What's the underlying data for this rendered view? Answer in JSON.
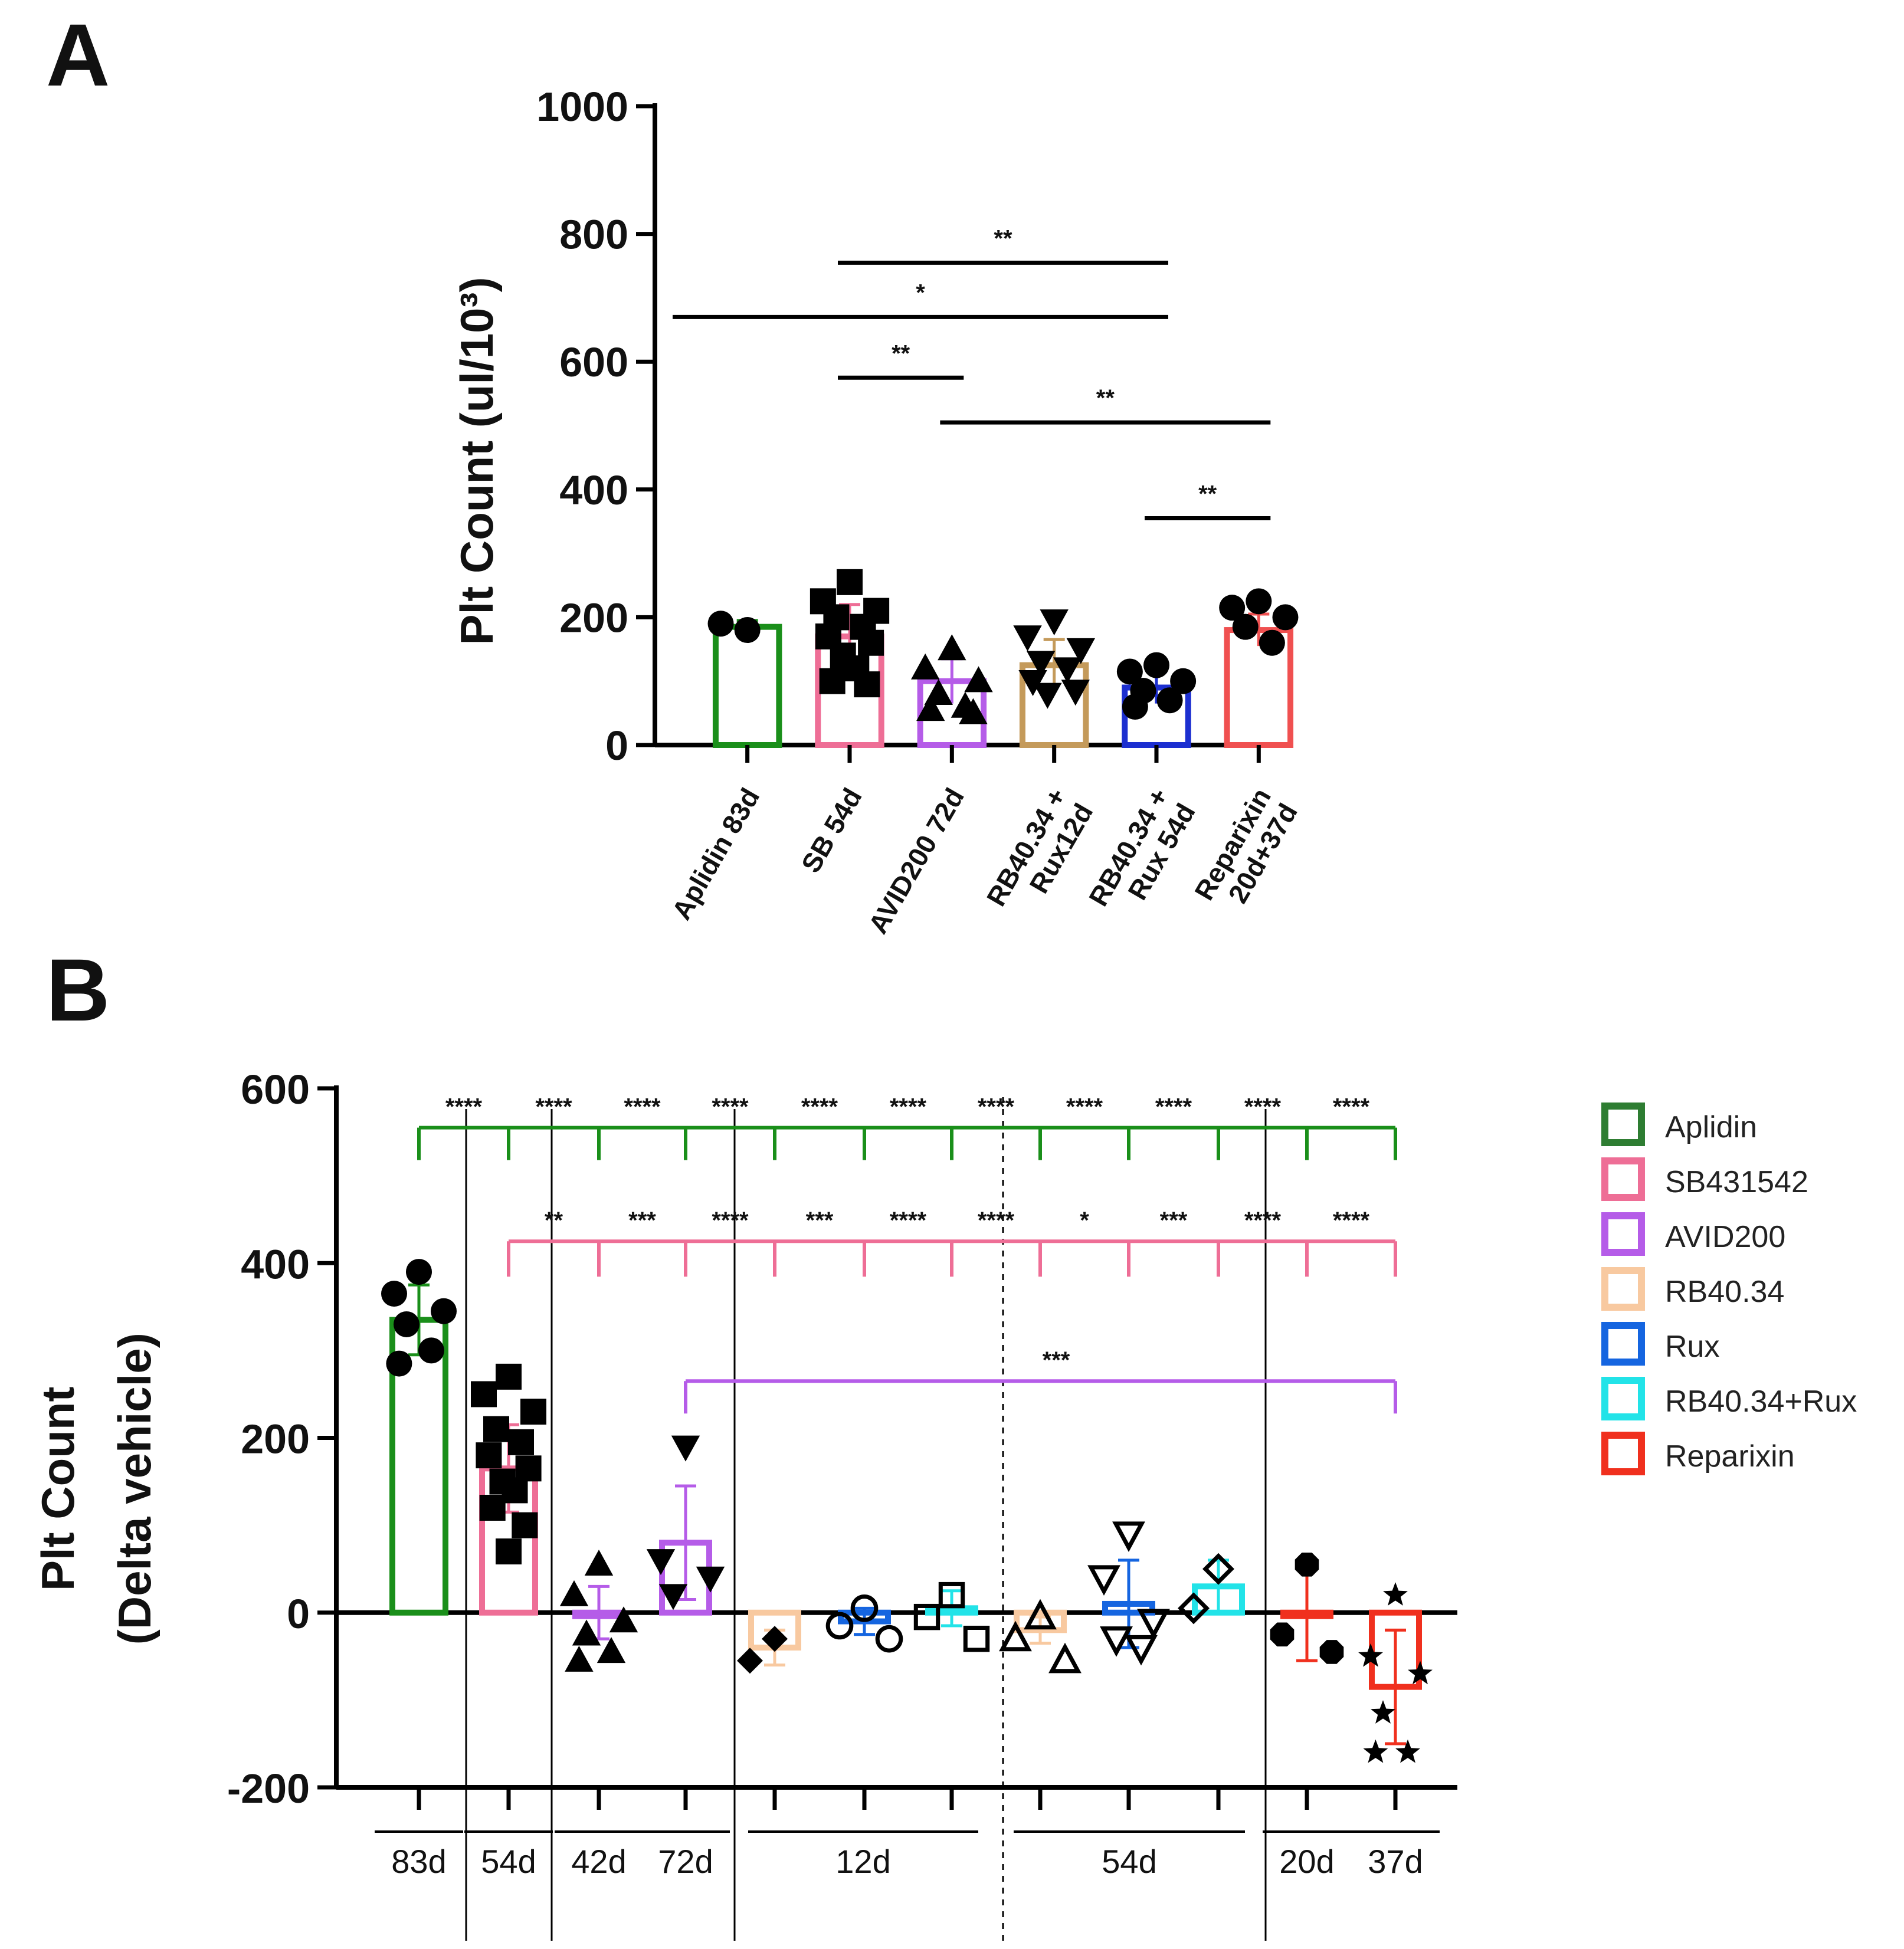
{
  "chart_data": [
    {
      "panel": "A",
      "type": "bar",
      "ylabel": "Plt Count (ul/10³)",
      "ylim": [
        0,
        1000
      ],
      "yticks": [
        0,
        200,
        400,
        600,
        800,
        1000
      ],
      "categories": [
        {
          "label": "Aplidin 83d",
          "lines": [
            "Aplidin 83d"
          ],
          "mean": 185,
          "sd": 10,
          "color": "#1a8f1a",
          "marker": "circle",
          "points": [
            180,
            190
          ]
        },
        {
          "label": "SB 54d",
          "lines": [
            "SB 54d"
          ],
          "mean": 170,
          "sd": 50,
          "color": "#ee6e96",
          "marker": "square",
          "points": [
            255,
            225,
            210,
            200,
            185,
            170,
            160,
            140,
            120,
            100,
            95
          ]
        },
        {
          "label": "AVID200 72d",
          "lines": [
            "AVID200 72d"
          ],
          "mean": 100,
          "sd": 35,
          "color": "#b55ce8",
          "marker": "triangle-up",
          "points": [
            150,
            120,
            100,
            80,
            60,
            55,
            50
          ]
        },
        {
          "label": "RB40.34 + Rux12d",
          "lines": [
            "RB40.34 +",
            "Rux12d"
          ],
          "mean": 125,
          "sd": 40,
          "color": "#c49a5a",
          "marker": "triangle-down",
          "points": [
            195,
            170,
            150,
            130,
            120,
            100,
            85,
            80
          ]
        },
        {
          "label": "RB40.34 + Rux 54d",
          "lines": [
            "RB40.34 +",
            "Rux 54d"
          ],
          "mean": 90,
          "sd": 25,
          "color": "#1c2fd0",
          "marker": "circle",
          "points": [
            125,
            115,
            100,
            85,
            70,
            60
          ]
        },
        {
          "label": "Reparixin 20d+37d",
          "lines": [
            "Reparixin",
            "20d+37d"
          ],
          "mean": 180,
          "sd": 25,
          "color": "#f05050",
          "marker": "circle",
          "points": [
            225,
            215,
            200,
            185,
            160
          ]
        }
      ],
      "comparisons": [
        {
          "from": 1,
          "to": 4,
          "y": 755,
          "label": "**"
        },
        {
          "from": 0,
          "to": 4,
          "y": 670,
          "label": "*"
        },
        {
          "from": 1,
          "to": 2,
          "y": 575,
          "label": "**"
        },
        {
          "from": 2,
          "to": 5,
          "y": 505,
          "label": "**"
        },
        {
          "from": 4,
          "to": 5,
          "y": 355,
          "label": "**"
        }
      ]
    },
    {
      "panel": "B",
      "type": "bar",
      "ylabel": "Plt Count",
      "ylabel2": "(Delta vehicle)",
      "ylim": [
        -200,
        600
      ],
      "yticks": [
        -200,
        0,
        200,
        400,
        600
      ],
      "legend": [
        {
          "name": "Aplidin",
          "color": "#2e7d32"
        },
        {
          "name": "SB431542",
          "color": "#ee6e96"
        },
        {
          "name": "AVID200",
          "color": "#b55ce8"
        },
        {
          "name": "RB40.34",
          "color": "#f8c9a0"
        },
        {
          "name": "Rux",
          "color": "#1565e0"
        },
        {
          "name": "RB40.34+Rux",
          "color": "#22e3e8"
        },
        {
          "name": "Reparixin",
          "color": "#f0301e"
        }
      ],
      "groups": [
        {
          "mean": 335,
          "sd": 40,
          "color": "#1a8f1a",
          "marker": "circle",
          "points": [
            390,
            365,
            345,
            330,
            300,
            285
          ]
        },
        {
          "mean": 165,
          "sd": 50,
          "color": "#ee6e96",
          "marker": "square",
          "points": [
            270,
            250,
            230,
            210,
            195,
            180,
            165,
            150,
            140,
            120,
            100,
            70
          ]
        },
        {
          "mean": 0,
          "sd": 30,
          "color": "#b55ce8",
          "marker": "triangle-up",
          "points": [
            55,
            20,
            -10,
            -25,
            -45,
            -55
          ]
        },
        {
          "mean": 80,
          "sd": 65,
          "color": "#b55ce8",
          "marker": "triangle-down",
          "points": [
            190,
            60,
            40,
            20
          ]
        },
        {
          "mean": -40,
          "sd": 20,
          "color": "#f8c9a0",
          "marker": "diamond-filled",
          "points": [
            -30,
            -55
          ]
        },
        {
          "mean": -10,
          "sd": 15,
          "color": "#1565e0",
          "marker": "circle-open",
          "points": [
            5,
            -15,
            -30
          ]
        },
        {
          "mean": 5,
          "sd": 20,
          "color": "#22e3e8",
          "marker": "square-open",
          "points": [
            20,
            -5,
            -30
          ]
        },
        {
          "mean": -20,
          "sd": 15,
          "color": "#f8c9a0",
          "marker": "triangle-up-open",
          "points": [
            -5,
            -30,
            -55
          ]
        },
        {
          "mean": 10,
          "sd": 50,
          "color": "#1565e0",
          "marker": "triangle-down-open",
          "points": [
            90,
            40,
            -10,
            -30,
            -40
          ]
        },
        {
          "mean": 30,
          "sd": 30,
          "color": "#22e3e8",
          "marker": "diamond-open",
          "points": [
            50,
            5
          ]
        },
        {
          "mean": 0,
          "sd": 55,
          "color": "#f0301e",
          "marker": "hexagon",
          "points": [
            55,
            -25,
            -45
          ]
        },
        {
          "mean": -85,
          "sd": 65,
          "color": "#f0301e",
          "marker": "star",
          "points": [
            20,
            -50,
            -70,
            -115,
            -160,
            -160
          ]
        }
      ],
      "time_labels": [
        {
          "label": "83d",
          "from": 0,
          "to": 0
        },
        {
          "label": "54d",
          "from": 1,
          "to": 1
        },
        {
          "label": "42d",
          "from": 2,
          "to": 2
        },
        {
          "label": "72d",
          "from": 3,
          "to": 3
        },
        {
          "label": "12d",
          "from": 4,
          "to": 6
        },
        {
          "label": "54d",
          "from": 7,
          "to": 9
        },
        {
          "label": "20d",
          "from": 10,
          "to": 10
        },
        {
          "label": "37d",
          "from": 11,
          "to": 11
        }
      ],
      "bracket_aplidin": {
        "y": 555,
        "ref": 0,
        "targets": [
          1,
          2,
          3,
          4,
          5,
          6,
          7,
          8,
          9,
          10,
          11
        ],
        "labels": [
          "****",
          "****",
          "****",
          "****",
          "****",
          "****",
          "****",
          "****",
          "****",
          "****",
          "****"
        ]
      },
      "bracket_sb": {
        "y": 425,
        "ref": 1,
        "targets": [
          2,
          3,
          4,
          5,
          6,
          7,
          8,
          9,
          10,
          11
        ],
        "labels": [
          "**",
          "***",
          "****",
          "***",
          "****",
          "****",
          "*",
          "***",
          "****",
          "****"
        ]
      },
      "bracket_avid": {
        "y": 265,
        "ref": 3,
        "target": 11,
        "label": "***"
      }
    }
  ],
  "panel_labels": {
    "a": "A",
    "b": "B"
  }
}
